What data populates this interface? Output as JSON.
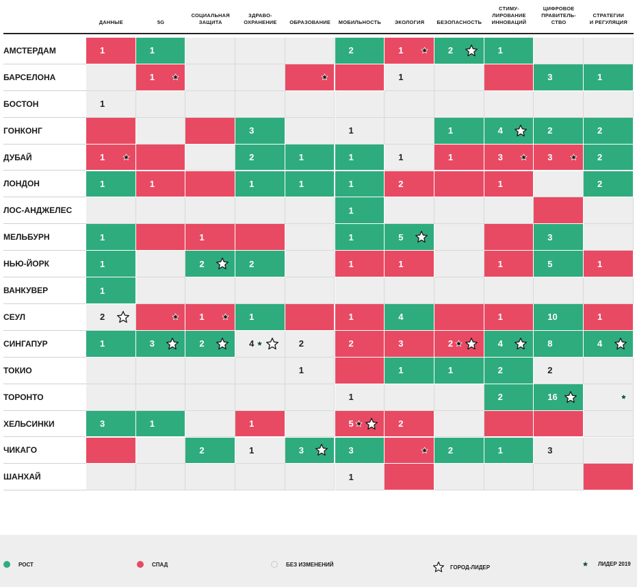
{
  "chart_data": {
    "type": "table",
    "columns": [
      "ДАННЫЕ",
      "5G",
      "СОЦИАЛЬНАЯ\nЗАЩИТА",
      "ЗДРАВО-\nОХРАНЕНИЕ",
      "ОБРАЗОВАНИЕ",
      "МОБИЛЬНОСТЬ",
      "ЭКОЛОГИЯ",
      "БЕЗОПАСНОСТЬ",
      "СТИМУ-\nЛИРОВАНИЕ\nИННОВАЦИЙ",
      "ЦИФРОВОЕ\nПРАВИТЕЛЬ-\nСТВО",
      "СТРАТЕГИИ\nИ РЕГУЛЯЦИЯ"
    ],
    "rows": [
      {
        "city": "АМСТЕРДАМ",
        "cells": [
          {
            "t": "down",
            "v": "1"
          },
          {
            "t": "up",
            "v": "1"
          },
          {
            "t": "none"
          },
          {
            "t": "none"
          },
          {
            "t": "none"
          },
          {
            "t": "up",
            "v": "2"
          },
          {
            "t": "down",
            "v": "1",
            "l": 1
          },
          {
            "t": "up",
            "v": "2",
            "s": 1
          },
          {
            "t": "up",
            "v": "1"
          },
          {
            "t": "none"
          },
          {
            "t": "none"
          }
        ]
      },
      {
        "city": "БАРСЕЛОНА",
        "cells": [
          {
            "t": "none"
          },
          {
            "t": "down",
            "v": "1",
            "l": 1
          },
          {
            "t": "none"
          },
          {
            "t": "none"
          },
          {
            "t": "down",
            "l": 1
          },
          {
            "t": "down"
          },
          {
            "t": "none",
            "v": "1"
          },
          {
            "t": "none"
          },
          {
            "t": "down"
          },
          {
            "t": "up",
            "v": "3"
          },
          {
            "t": "up",
            "v": "1"
          }
        ]
      },
      {
        "city": "БОСТОН",
        "cells": [
          {
            "t": "none",
            "v": "1"
          },
          {
            "t": "none"
          },
          {
            "t": "none"
          },
          {
            "t": "none"
          },
          {
            "t": "none"
          },
          {
            "t": "none"
          },
          {
            "t": "none"
          },
          {
            "t": "none"
          },
          {
            "t": "none"
          },
          {
            "t": "none"
          },
          {
            "t": "none"
          }
        ]
      },
      {
        "city": "ГОНКОНГ",
        "cells": [
          {
            "t": "down"
          },
          {
            "t": "none"
          },
          {
            "t": "down"
          },
          {
            "t": "up",
            "v": "3"
          },
          {
            "t": "none"
          },
          {
            "t": "none",
            "v": "1"
          },
          {
            "t": "none"
          },
          {
            "t": "up",
            "v": "1"
          },
          {
            "t": "up",
            "v": "4",
            "s": 1
          },
          {
            "t": "up",
            "v": "2"
          },
          {
            "t": "up",
            "v": "2"
          }
        ]
      },
      {
        "city": "ДУБАЙ",
        "cells": [
          {
            "t": "down",
            "v": "1",
            "l": 1
          },
          {
            "t": "down"
          },
          {
            "t": "none"
          },
          {
            "t": "up",
            "v": "2"
          },
          {
            "t": "up",
            "v": "1"
          },
          {
            "t": "up",
            "v": "1"
          },
          {
            "t": "none",
            "v": "1"
          },
          {
            "t": "down",
            "v": "1"
          },
          {
            "t": "down",
            "v": "3",
            "l": 1
          },
          {
            "t": "down",
            "v": "3",
            "l": 1
          },
          {
            "t": "up",
            "v": "2"
          }
        ]
      },
      {
        "city": "ЛОНДОН",
        "cells": [
          {
            "t": "up",
            "v": "1"
          },
          {
            "t": "down",
            "v": "1"
          },
          {
            "t": "down"
          },
          {
            "t": "up",
            "v": "1"
          },
          {
            "t": "up",
            "v": "1"
          },
          {
            "t": "up",
            "v": "1"
          },
          {
            "t": "down",
            "v": "2"
          },
          {
            "t": "down"
          },
          {
            "t": "down",
            "v": "1"
          },
          {
            "t": "none"
          },
          {
            "t": "up",
            "v": "2"
          }
        ]
      },
      {
        "city": "ЛОС-АНДЖЕЛЕС",
        "cells": [
          {
            "t": "none"
          },
          {
            "t": "none"
          },
          {
            "t": "none"
          },
          {
            "t": "none"
          },
          {
            "t": "none"
          },
          {
            "t": "up",
            "v": "1"
          },
          {
            "t": "none"
          },
          {
            "t": "none"
          },
          {
            "t": "none"
          },
          {
            "t": "down"
          },
          {
            "t": "none"
          }
        ]
      },
      {
        "city": "МЕЛЬБУРН",
        "cells": [
          {
            "t": "up",
            "v": "1"
          },
          {
            "t": "down"
          },
          {
            "t": "down",
            "v": "1"
          },
          {
            "t": "down"
          },
          {
            "t": "none"
          },
          {
            "t": "up",
            "v": "1"
          },
          {
            "t": "up",
            "v": "5",
            "s": 1
          },
          {
            "t": "none"
          },
          {
            "t": "down"
          },
          {
            "t": "up",
            "v": "3"
          },
          {
            "t": "none"
          }
        ]
      },
      {
        "city": "НЬЮ-ЙОРК",
        "cells": [
          {
            "t": "up",
            "v": "1"
          },
          {
            "t": "none"
          },
          {
            "t": "up",
            "v": "2",
            "s": 1
          },
          {
            "t": "up",
            "v": "2"
          },
          {
            "t": "none"
          },
          {
            "t": "down",
            "v": "1"
          },
          {
            "t": "down",
            "v": "1"
          },
          {
            "t": "none"
          },
          {
            "t": "down",
            "v": "1"
          },
          {
            "t": "up",
            "v": "5"
          },
          {
            "t": "down",
            "v": "1"
          }
        ]
      },
      {
        "city": "ВАНКУВЕР",
        "cells": [
          {
            "t": "up",
            "v": "1"
          },
          {
            "t": "none"
          },
          {
            "t": "none"
          },
          {
            "t": "none"
          },
          {
            "t": "none"
          },
          {
            "t": "none"
          },
          {
            "t": "none"
          },
          {
            "t": "none"
          },
          {
            "t": "none"
          },
          {
            "t": "none"
          },
          {
            "t": "none"
          }
        ]
      },
      {
        "city": "СЕУЛ",
        "cells": [
          {
            "t": "none",
            "v": "2",
            "s": 1
          },
          {
            "t": "down",
            "l": 1
          },
          {
            "t": "down",
            "v": "1",
            "l": 1
          },
          {
            "t": "up",
            "v": "1"
          },
          {
            "t": "down"
          },
          {
            "t": "down",
            "v": "1"
          },
          {
            "t": "up",
            "v": "4"
          },
          {
            "t": "down"
          },
          {
            "t": "down",
            "v": "1"
          },
          {
            "t": "up",
            "v": "10"
          },
          {
            "t": "down",
            "v": "1"
          }
        ]
      },
      {
        "city": "СИНГАПУР",
        "cells": [
          {
            "t": "up",
            "v": "1"
          },
          {
            "t": "up",
            "v": "3",
            "s": 1
          },
          {
            "t": "up",
            "v": "2",
            "s": 1
          },
          {
            "t": "none",
            "v": "4",
            "l": 1,
            "s": 1
          },
          {
            "t": "none",
            "v": "2"
          },
          {
            "t": "down",
            "v": "2"
          },
          {
            "t": "down",
            "v": "3"
          },
          {
            "t": "down",
            "v": "2",
            "l": 1,
            "s": 1
          },
          {
            "t": "up",
            "v": "4",
            "s": 1
          },
          {
            "t": "up",
            "v": "8"
          },
          {
            "t": "up",
            "v": "4",
            "s": 1
          }
        ]
      },
      {
        "city": "ТОКИО",
        "cells": [
          {
            "t": "none"
          },
          {
            "t": "none"
          },
          {
            "t": "none"
          },
          {
            "t": "none"
          },
          {
            "t": "none",
            "v": "1"
          },
          {
            "t": "down"
          },
          {
            "t": "up",
            "v": "1"
          },
          {
            "t": "up",
            "v": "1"
          },
          {
            "t": "up",
            "v": "2"
          },
          {
            "t": "none",
            "v": "2"
          },
          {
            "t": "none"
          }
        ]
      },
      {
        "city": "ТОРОНТО",
        "cells": [
          {
            "t": "none"
          },
          {
            "t": "none"
          },
          {
            "t": "none"
          },
          {
            "t": "none"
          },
          {
            "t": "none"
          },
          {
            "t": "none",
            "v": "1"
          },
          {
            "t": "none"
          },
          {
            "t": "none"
          },
          {
            "t": "up",
            "v": "2"
          },
          {
            "t": "up",
            "v": "16",
            "s": 1
          },
          {
            "t": "none",
            "l": 1
          }
        ]
      },
      {
        "city": "ХЕЛЬСИНКИ",
        "cells": [
          {
            "t": "up",
            "v": "3"
          },
          {
            "t": "up",
            "v": "1"
          },
          {
            "t": "none"
          },
          {
            "t": "down",
            "v": "1"
          },
          {
            "t": "none"
          },
          {
            "t": "down",
            "v": "5",
            "l": 1,
            "s": 1
          },
          {
            "t": "down",
            "v": "2"
          },
          {
            "t": "none"
          },
          {
            "t": "down"
          },
          {
            "t": "down"
          },
          {
            "t": "none"
          }
        ]
      },
      {
        "city": "ЧИКАГО",
        "cells": [
          {
            "t": "down"
          },
          {
            "t": "none"
          },
          {
            "t": "up",
            "v": "2"
          },
          {
            "t": "none",
            "v": "1"
          },
          {
            "t": "up",
            "v": "3",
            "s": 1
          },
          {
            "t": "up",
            "v": "3"
          },
          {
            "t": "down",
            "l": 1
          },
          {
            "t": "up",
            "v": "2"
          },
          {
            "t": "up",
            "v": "1"
          },
          {
            "t": "none",
            "v": "3"
          },
          {
            "t": "none"
          }
        ]
      },
      {
        "city": "ШАНХАЙ",
        "cells": [
          {
            "t": "none"
          },
          {
            "t": "none"
          },
          {
            "t": "none"
          },
          {
            "t": "none"
          },
          {
            "t": "none"
          },
          {
            "t": "none",
            "v": "1"
          },
          {
            "t": "down"
          },
          {
            "t": "none"
          },
          {
            "t": "none"
          },
          {
            "t": "none"
          },
          {
            "t": "down"
          }
        ]
      }
    ]
  },
  "legend": {
    "up": "РОСТ",
    "down": "СПАД",
    "none": "БЕЗ ИЗМЕНЕНИЙ",
    "leader": "ГОРОД-ЛИДЕР",
    "leader2019": "ЛИДЕР 2019"
  },
  "colors": {
    "up": "#2eac7e",
    "down": "#e84a63",
    "none": "#eeeeee",
    "legend_bg": "#eeeeee"
  }
}
